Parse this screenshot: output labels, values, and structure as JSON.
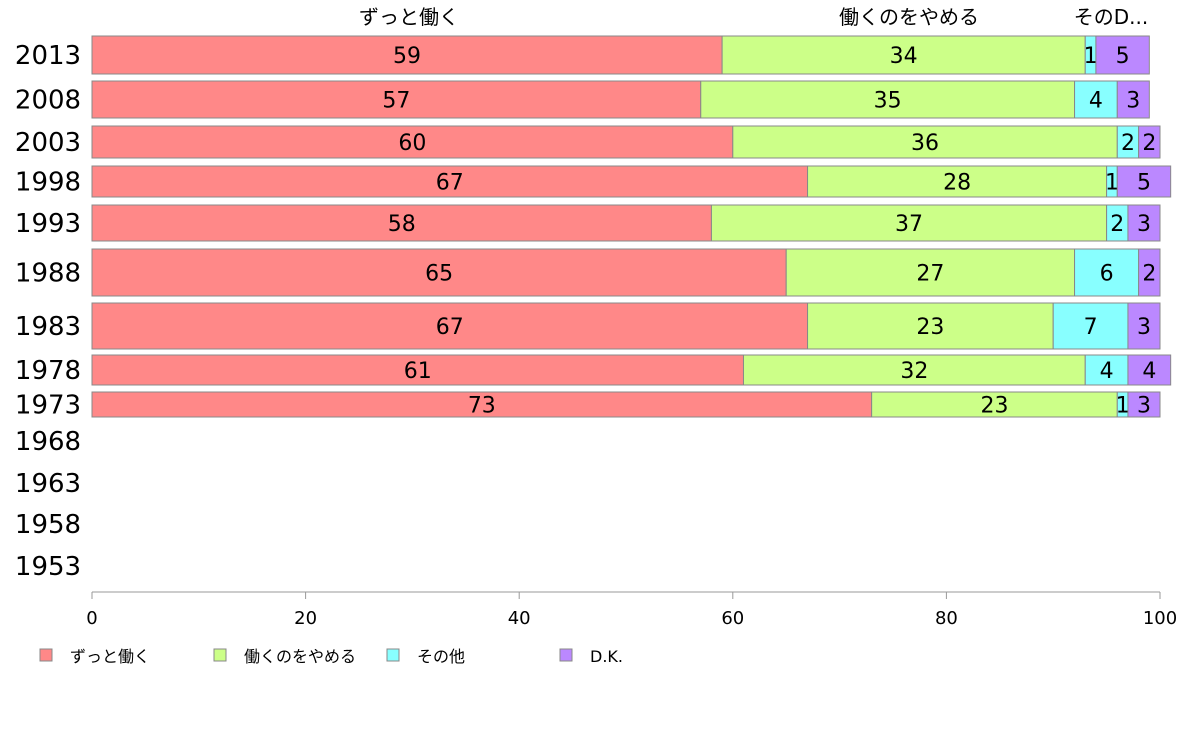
{
  "chart_data": {
    "type": "bar",
    "orientation": "horizontal",
    "stacked": true,
    "column_headers": [
      "ずっと働く",
      "働くのをやめる",
      "そのD..."
    ],
    "categories": [
      "2013",
      "2008",
      "2003",
      "1998",
      "1993",
      "1988",
      "1983",
      "1978",
      "1973",
      "1968",
      "1963",
      "1958",
      "1953"
    ],
    "series": [
      {
        "name": "ずっと働く",
        "color": "#ff8888",
        "values": [
          59,
          57,
          60,
          67,
          58,
          65,
          67,
          61,
          73,
          null,
          null,
          null,
          null
        ]
      },
      {
        "name": "働くのをやめる",
        "color": "#ccff88",
        "values": [
          34,
          35,
          36,
          28,
          37,
          27,
          23,
          32,
          23,
          null,
          null,
          null,
          null
        ]
      },
      {
        "name": "その他",
        "color": "#88ffff",
        "values": [
          1,
          4,
          2,
          1,
          2,
          6,
          7,
          4,
          1,
          null,
          null,
          null,
          null
        ]
      },
      {
        "name": "D.K.",
        "color": "#bb88ff",
        "values": [
          5,
          3,
          2,
          5,
          3,
          2,
          3,
          4,
          3,
          null,
          null,
          null,
          null
        ]
      }
    ],
    "xlim": [
      0,
      100
    ],
    "xticks": [
      0,
      20,
      40,
      60,
      80,
      100
    ],
    "grid": false,
    "legend_position": "bottom-left"
  }
}
